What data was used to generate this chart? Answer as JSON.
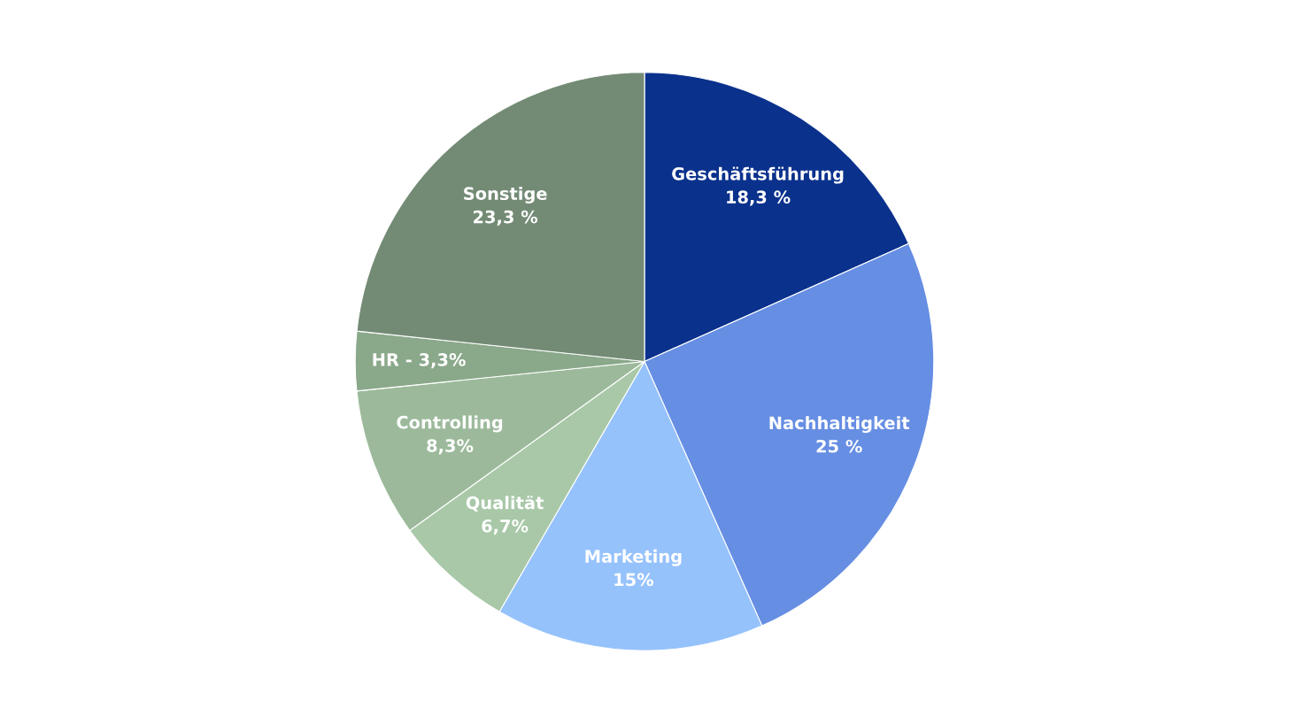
{
  "chart_data": {
    "type": "pie",
    "categories": [
      "Geschäftsführung",
      "Nachhaltigkeit",
      "Marketing",
      "Qualität",
      "Controlling",
      "HR - 3,3%",
      "Sonstige"
    ],
    "values": [
      18.3,
      25,
      15,
      6.7,
      8.3,
      3.3,
      23.3
    ],
    "value_labels": [
      "18,3 %",
      "25 %",
      "15%",
      "6,7%",
      "8,3%",
      null,
      "23,3 %"
    ],
    "colors": [
      "#0a318c",
      "#668ee3",
      "#96c2fc",
      "#a8c8a8",
      "#9cba9b",
      "#8aa88a",
      "#738b75"
    ]
  }
}
